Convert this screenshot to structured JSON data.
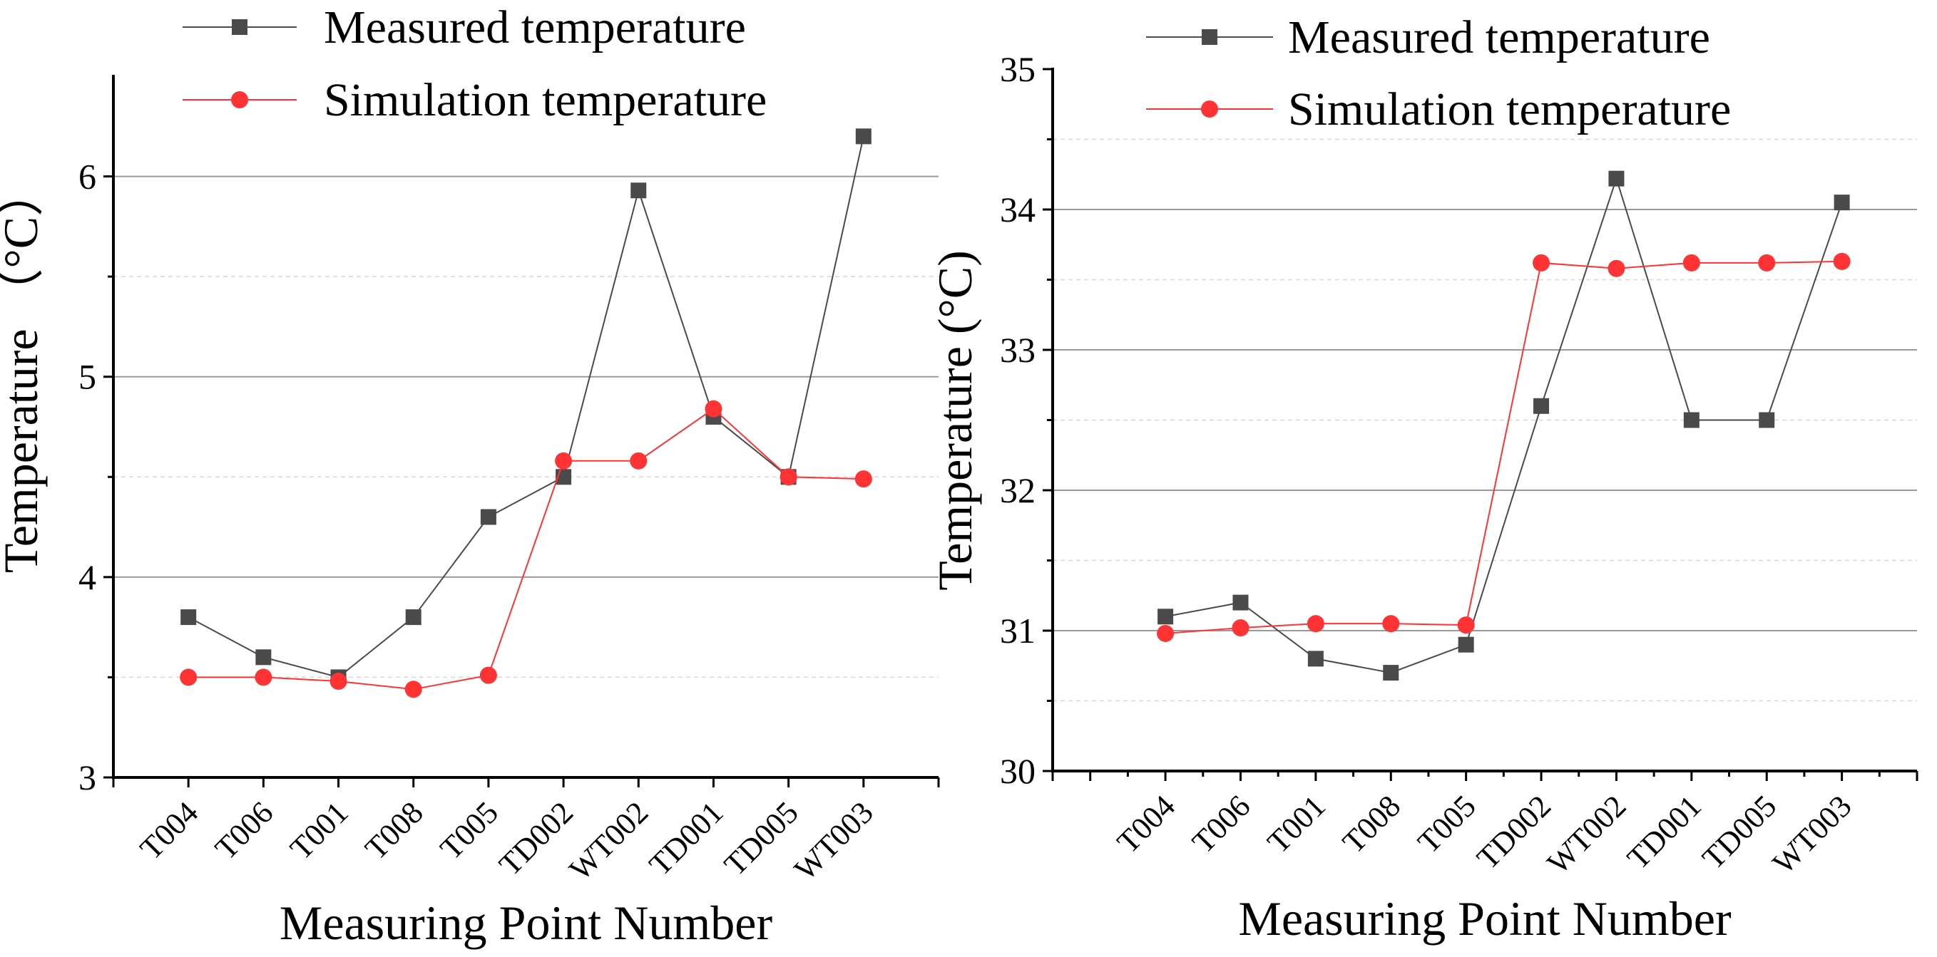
{
  "chart_data": [
    {
      "type": "line",
      "title": "",
      "xlabel": "Measuring Point Number",
      "ylabel": "Temperature （°C）",
      "categories": [
        "T004",
        "T006",
        "T001",
        "T008",
        "T005",
        "TD002",
        "WT002",
        "TD001",
        "TD005",
        "WT003"
      ],
      "ylim": [
        3,
        6.5
      ],
      "xlim": [
        0,
        11
      ],
      "yticks": [
        "3",
        "4",
        "5",
        "6"
      ],
      "ytick_values": [
        3,
        4,
        5,
        6
      ],
      "minor_grid": [
        3.5,
        4.5,
        5.5
      ],
      "minor_xticks": false,
      "grid": true,
      "legend_position": "top-left",
      "series": [
        {
          "name": "Measured temperature",
          "marker": "square",
          "color": "#4a4a4a",
          "values": [
            3.8,
            3.6,
            3.5,
            3.8,
            4.3,
            4.5,
            5.93,
            4.8,
            4.5,
            6.2
          ]
        },
        {
          "name": "Simulation temperature",
          "marker": "circle",
          "color": "#ff3333",
          "values": [
            3.5,
            3.5,
            3.48,
            3.44,
            3.51,
            4.58,
            4.58,
            4.84,
            4.5,
            4.49
          ]
        }
      ]
    },
    {
      "type": "line",
      "title": "",
      "xlabel": "Measuring Point Number",
      "ylabel": "Temperature (°C)",
      "categories": [
        "T004",
        "T006",
        "T001",
        "T008",
        "T005",
        "TD002",
        "WT002",
        "TD001",
        "TD005",
        "WT003"
      ],
      "ylim": [
        30,
        35
      ],
      "xlim": [
        -0.5,
        11
      ],
      "yticks": [
        "30",
        "31",
        "32",
        "33",
        "34",
        "35"
      ],
      "ytick_values": [
        30,
        31,
        32,
        33,
        34,
        35
      ],
      "minor_grid": [
        30.5,
        31.5,
        32.5,
        33.5,
        34.5
      ],
      "minor_xticks": true,
      "grid": true,
      "legend_position": "top-left",
      "series": [
        {
          "name": "Measured temperature",
          "marker": "square",
          "color": "#4a4a4a",
          "values": [
            31.1,
            31.2,
            30.8,
            30.7,
            30.9,
            32.6,
            34.22,
            32.5,
            32.5,
            34.05
          ]
        },
        {
          "name": "Simulation temperature",
          "marker": "circle",
          "color": "#ff3333",
          "values": [
            30.98,
            31.02,
            31.05,
            31.05,
            31.04,
            33.62,
            33.58,
            33.62,
            33.62,
            33.63
          ]
        }
      ]
    }
  ]
}
